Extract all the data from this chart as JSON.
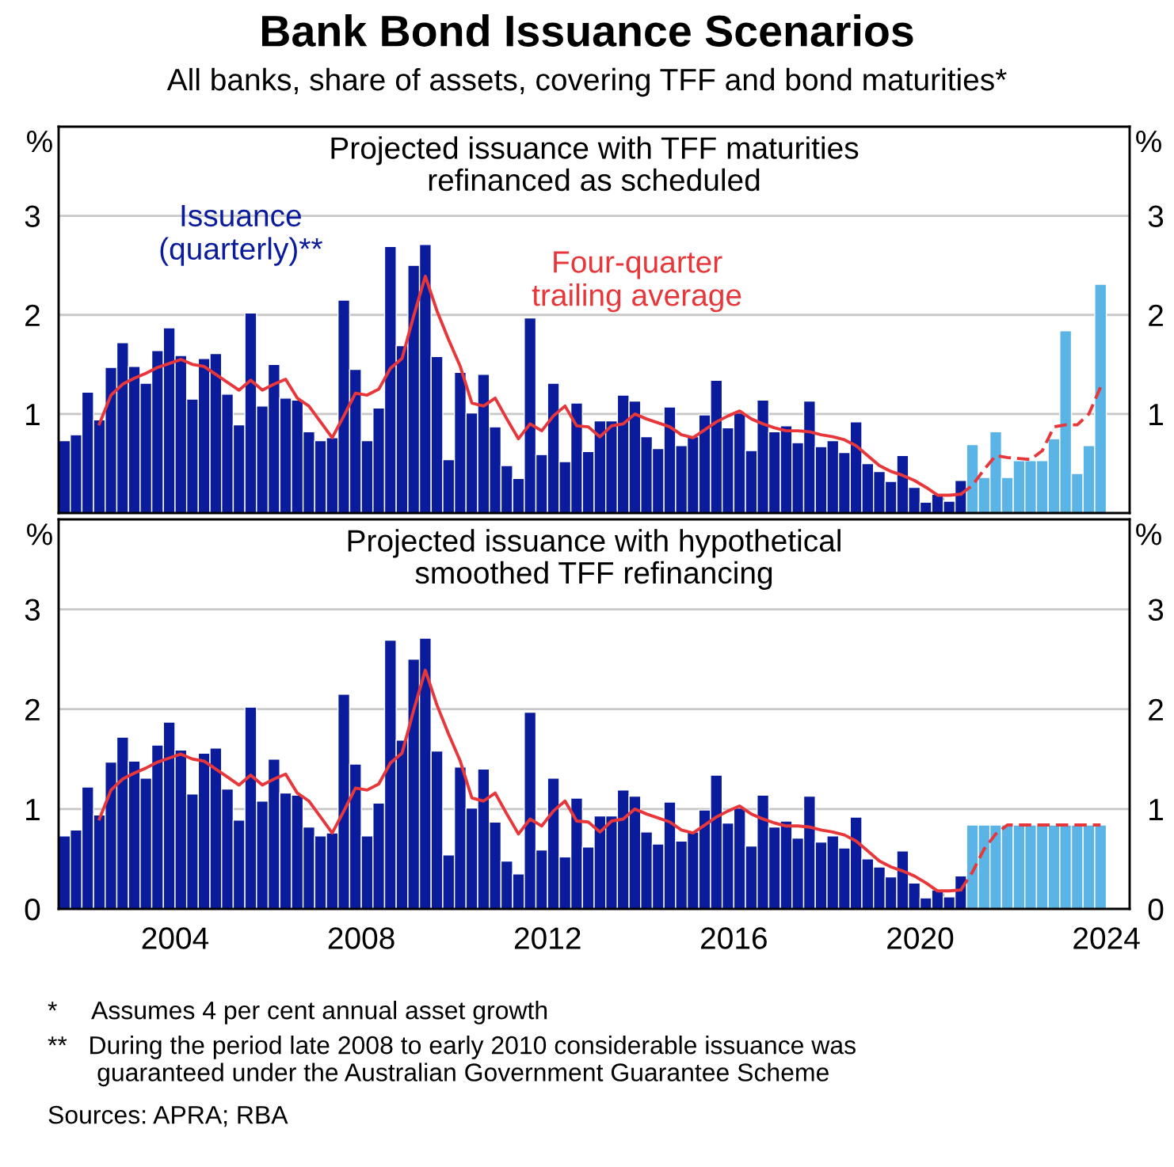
{
  "chart_data": [
    {
      "type": "bar",
      "title": "Bank Bond Issuance Scenarios",
      "subtitle": "All banks, share of assets, covering TFF and bond maturities*",
      "annotations": [
        "Projected issuance with TFF maturities\nrefinanced as scheduled"
      ],
      "x": [
        2002.125,
        2002.375,
        2002.625,
        2002.875,
        2003.125,
        2003.375,
        2003.625,
        2003.875,
        2004.125,
        2004.375,
        2004.625,
        2004.875,
        2005.125,
        2005.375,
        2005.625,
        2005.875,
        2006.125,
        2006.375,
        2006.625,
        2006.875,
        2007.125,
        2007.375,
        2007.625,
        2007.875,
        2008.125,
        2008.375,
        2008.625,
        2008.875,
        2009.125,
        2009.375,
        2009.625,
        2009.875,
        2010.125,
        2010.375,
        2010.625,
        2010.875,
        2011.125,
        2011.375,
        2011.625,
        2011.875,
        2012.125,
        2012.375,
        2012.625,
        2012.875,
        2013.125,
        2013.375,
        2013.625,
        2013.875,
        2014.125,
        2014.375,
        2014.625,
        2014.875,
        2015.125,
        2015.375,
        2015.625,
        2015.875,
        2016.125,
        2016.375,
        2016.625,
        2016.875,
        2017.125,
        2017.375,
        2017.625,
        2017.875,
        2018.125,
        2018.375,
        2018.625,
        2018.875,
        2019.125,
        2019.375,
        2019.625,
        2019.875,
        2020.125,
        2020.375,
        2020.625,
        2020.875,
        2021.125,
        2021.375,
        2021.625,
        2021.875,
        2022.125,
        2022.375,
        2022.625,
        2022.875,
        2023.125,
        2023.375,
        2023.625,
        2023.875,
        2024.125,
        2024.375
      ],
      "xlim": [
        2002,
        2025
      ],
      "xticks": [
        {
          "value": 2003,
          "label": null
        },
        {
          "value": 2004,
          "label": null
        },
        {
          "value": 2005,
          "label": null
        },
        {
          "value": 2006,
          "label": null
        },
        {
          "value": 2007,
          "label": null
        },
        {
          "value": 2008,
          "label": null
        },
        {
          "value": 2009,
          "label": null
        },
        {
          "value": 2010,
          "label": null
        },
        {
          "value": 2011,
          "label": null
        },
        {
          "value": 2012,
          "label": null
        },
        {
          "value": 2013,
          "label": null
        },
        {
          "value": 2014,
          "label": null
        },
        {
          "value": 2015,
          "label": null
        },
        {
          "value": 2016,
          "label": null
        },
        {
          "value": 2017,
          "label": null
        },
        {
          "value": 2018,
          "label": null
        },
        {
          "value": 2019,
          "label": null
        },
        {
          "value": 2020,
          "label": null
        },
        {
          "value": 2021,
          "label": null
        },
        {
          "value": 2022,
          "label": null
        },
        {
          "value": 2023,
          "label": null
        },
        {
          "value": 2024,
          "label": null
        }
      ],
      "ylim": [
        0,
        3.9
      ],
      "yticks": [
        1,
        2,
        3
      ],
      "y2lim": [
        0,
        3.9
      ],
      "y2ticks": [
        1,
        2,
        3
      ],
      "ylabel": "%",
      "y2label": "%",
      "grid": "y",
      "tick_labels": "y",
      "series": [
        {
          "name": "Issuance\n(quarterly)**",
          "color": "#0a1c9c",
          "values": [
            0.73,
            0.79,
            1.22,
            0.94,
            1.47,
            1.72,
            1.48,
            1.31,
            1.64,
            1.87,
            1.59,
            1.15,
            1.56,
            1.61,
            1.2,
            0.89,
            2.02,
            1.08,
            1.5,
            1.16,
            1.14,
            0.82,
            0.73,
            0.76,
            2.15,
            1.45,
            0.73,
            1.06,
            2.69,
            1.69,
            2.5,
            2.71,
            1.58,
            0.54,
            1.42,
            1.01,
            1.4,
            0.87,
            0.48,
            0.35,
            1.97,
            0.59,
            1.31,
            0.52,
            1.11,
            0.62,
            0.93,
            0.93,
            1.19,
            1.13,
            0.77,
            0.65,
            1.07,
            0.68,
            0.77,
            0.99,
            1.34,
            0.86,
            1.01,
            0.63,
            1.14,
            0.82,
            0.88,
            0.71,
            1.13,
            0.67,
            0.73,
            0.61,
            0.92,
            0.5,
            0.42,
            0.32,
            0.58,
            0.26,
            0.11,
            0.19,
            0.12,
            0.33,
            null,
            null,
            null,
            null,
            null,
            null,
            null,
            null,
            null,
            null,
            null,
            null
          ]
        },
        {
          "color": "#5ab4e5",
          "values": [
            null,
            null,
            null,
            null,
            null,
            null,
            null,
            null,
            null,
            null,
            null,
            null,
            null,
            null,
            null,
            null,
            null,
            null,
            null,
            null,
            null,
            null,
            null,
            null,
            null,
            null,
            null,
            null,
            null,
            null,
            null,
            null,
            null,
            null,
            null,
            null,
            null,
            null,
            null,
            null,
            null,
            null,
            null,
            null,
            null,
            null,
            null,
            null,
            null,
            null,
            null,
            null,
            null,
            null,
            null,
            null,
            null,
            null,
            null,
            null,
            null,
            null,
            null,
            null,
            null,
            null,
            null,
            null,
            null,
            null,
            null,
            null,
            null,
            null,
            null,
            null,
            null,
            null,
            0.69,
            0.36,
            0.82,
            0.36,
            0.53,
            0.53,
            0.53,
            0.75,
            1.84,
            0.4,
            0.68,
            2.31
          ]
        },
        {
          "type": "line",
          "name": "Four-quarter\ntrailing average",
          "color": "#e8373a",
          "line_style": "solid",
          "values": [
            null,
            null,
            null,
            0.9,
            1.19,
            1.3,
            1.36,
            1.41,
            1.47,
            1.51,
            1.55,
            1.5,
            1.48,
            1.4,
            1.32,
            1.24,
            1.34,
            1.24,
            1.3,
            1.35,
            1.16,
            1.08,
            0.92,
            0.76,
            0.98,
            1.21,
            1.19,
            1.25,
            1.46,
            1.56,
            1.99,
            2.39,
            2.04,
            1.75,
            1.48,
            1.11,
            1.08,
            1.16,
            0.95,
            0.75,
            0.9,
            0.83,
            0.98,
            1.08,
            0.88,
            0.87,
            0.77,
            0.88,
            0.9,
            1.0,
            0.95,
            0.91,
            0.87,
            0.79,
            0.76,
            0.84,
            0.92,
            0.98,
            1.03,
            0.95,
            0.9,
            0.86,
            0.83,
            0.83,
            0.82,
            0.79,
            0.77,
            0.74,
            0.68,
            0.58,
            0.48,
            0.42,
            0.38,
            0.33,
            0.26,
            0.18,
            0.18,
            0.19,
            null,
            null,
            null,
            null,
            null,
            null,
            null,
            null,
            null,
            null,
            null,
            null
          ]
        },
        {
          "type": "line",
          "color": "#e8373a",
          "line_style": "dashed",
          "values": [
            null,
            null,
            null,
            null,
            null,
            null,
            null,
            null,
            null,
            null,
            null,
            null,
            null,
            null,
            null,
            null,
            null,
            null,
            null,
            null,
            null,
            null,
            null,
            null,
            null,
            null,
            null,
            null,
            null,
            null,
            null,
            null,
            null,
            null,
            null,
            null,
            null,
            null,
            null,
            null,
            null,
            null,
            null,
            null,
            null,
            null,
            null,
            null,
            null,
            null,
            null,
            null,
            null,
            null,
            null,
            null,
            null,
            null,
            null,
            null,
            null,
            null,
            null,
            null,
            null,
            null,
            null,
            null,
            null,
            null,
            null,
            null,
            null,
            null,
            null,
            null,
            null,
            0.19,
            0.28,
            0.44,
            0.58,
            0.56,
            0.55,
            0.54,
            0.63,
            0.87,
            0.89,
            0.89,
            1.0,
            1.27
          ]
        }
      ]
    },
    {
      "type": "bar",
      "annotations": [
        "Projected issuance with hypothetical\nsmoothed TFF refinancing",
        "*     Assumes 4 per cent annual asset growth",
        "**   During the period late 2008 to early 2010 considerable issuance was\n       guaranteed under the Australian Government Guarantee Scheme",
        "Sources: APRA; RBA"
      ],
      "x": [
        2002.125,
        2002.375,
        2002.625,
        2002.875,
        2003.125,
        2003.375,
        2003.625,
        2003.875,
        2004.125,
        2004.375,
        2004.625,
        2004.875,
        2005.125,
        2005.375,
        2005.625,
        2005.875,
        2006.125,
        2006.375,
        2006.625,
        2006.875,
        2007.125,
        2007.375,
        2007.625,
        2007.875,
        2008.125,
        2008.375,
        2008.625,
        2008.875,
        2009.125,
        2009.375,
        2009.625,
        2009.875,
        2010.125,
        2010.375,
        2010.625,
        2010.875,
        2011.125,
        2011.375,
        2011.625,
        2011.875,
        2012.125,
        2012.375,
        2012.625,
        2012.875,
        2013.125,
        2013.375,
        2013.625,
        2013.875,
        2014.125,
        2014.375,
        2014.625,
        2014.875,
        2015.125,
        2015.375,
        2015.625,
        2015.875,
        2016.125,
        2016.375,
        2016.625,
        2016.875,
        2017.125,
        2017.375,
        2017.625,
        2017.875,
        2018.125,
        2018.375,
        2018.625,
        2018.875,
        2019.125,
        2019.375,
        2019.625,
        2019.875,
        2020.125,
        2020.375,
        2020.625,
        2020.875,
        2021.125,
        2021.375,
        2021.625,
        2021.875,
        2022.125,
        2022.375,
        2022.625,
        2022.875,
        2023.125,
        2023.375,
        2023.625,
        2023.875,
        2024.125,
        2024.375
      ],
      "xlim": [
        2002,
        2025
      ],
      "xticks": [
        {
          "value": 2003,
          "label": null
        },
        {
          "value": 2004,
          "label": null
        },
        {
          "value": 2004.5,
          "label": "2004"
        },
        {
          "value": 2005,
          "label": null
        },
        {
          "value": 2006,
          "label": null
        },
        {
          "value": 2007,
          "label": null
        },
        {
          "value": 2008,
          "label": null
        },
        {
          "value": 2008.5,
          "label": "2008"
        },
        {
          "value": 2009,
          "label": null
        },
        {
          "value": 2010,
          "label": null
        },
        {
          "value": 2011,
          "label": null
        },
        {
          "value": 2012,
          "label": null
        },
        {
          "value": 2012.5,
          "label": "2012"
        },
        {
          "value": 2013,
          "label": null
        },
        {
          "value": 2014,
          "label": null
        },
        {
          "value": 2015,
          "label": null
        },
        {
          "value": 2016,
          "label": null
        },
        {
          "value": 2016.5,
          "label": "2016"
        },
        {
          "value": 2017,
          "label": null
        },
        {
          "value": 2018,
          "label": null
        },
        {
          "value": 2019,
          "label": null
        },
        {
          "value": 2020,
          "label": null
        },
        {
          "value": 2020.5,
          "label": "2020"
        },
        {
          "value": 2021,
          "label": null
        },
        {
          "value": 2022,
          "label": null
        },
        {
          "value": 2023,
          "label": null
        },
        {
          "value": 2024,
          "label": null
        },
        {
          "value": 2024.5,
          "label": "2024"
        }
      ],
      "ylim": [
        0,
        3.9
      ],
      "yticks": [
        0,
        1,
        2,
        3
      ],
      "y2lim": [
        0,
        3.9
      ],
      "y2ticks": [
        0,
        1,
        2,
        3
      ],
      "ylabel": "%",
      "y2label": "%",
      "grid": "y",
      "series": [
        {
          "color": "#0a1c9c",
          "values": [
            0.73,
            0.79,
            1.22,
            0.94,
            1.47,
            1.72,
            1.48,
            1.31,
            1.64,
            1.87,
            1.59,
            1.15,
            1.56,
            1.61,
            1.2,
            0.89,
            2.02,
            1.08,
            1.5,
            1.16,
            1.14,
            0.82,
            0.73,
            0.76,
            2.15,
            1.45,
            0.73,
            1.06,
            2.69,
            1.69,
            2.5,
            2.71,
            1.58,
            0.54,
            1.42,
            1.01,
            1.4,
            0.87,
            0.48,
            0.35,
            1.97,
            0.59,
            1.31,
            0.52,
            1.11,
            0.62,
            0.93,
            0.93,
            1.19,
            1.13,
            0.77,
            0.65,
            1.07,
            0.68,
            0.77,
            0.99,
            1.34,
            0.86,
            1.01,
            0.63,
            1.14,
            0.82,
            0.88,
            0.71,
            1.13,
            0.67,
            0.73,
            0.61,
            0.92,
            0.5,
            0.42,
            0.32,
            0.58,
            0.26,
            0.11,
            0.19,
            0.12,
            0.33,
            null,
            null,
            null,
            null,
            null,
            null,
            null,
            null,
            null,
            null,
            null,
            null
          ]
        },
        {
          "color": "#5ab4e5",
          "values": [
            null,
            null,
            null,
            null,
            null,
            null,
            null,
            null,
            null,
            null,
            null,
            null,
            null,
            null,
            null,
            null,
            null,
            null,
            null,
            null,
            null,
            null,
            null,
            null,
            null,
            null,
            null,
            null,
            null,
            null,
            null,
            null,
            null,
            null,
            null,
            null,
            null,
            null,
            null,
            null,
            null,
            null,
            null,
            null,
            null,
            null,
            null,
            null,
            null,
            null,
            null,
            null,
            null,
            null,
            null,
            null,
            null,
            null,
            null,
            null,
            null,
            null,
            null,
            null,
            null,
            null,
            null,
            null,
            null,
            null,
            null,
            null,
            null,
            null,
            null,
            null,
            null,
            null,
            0.84,
            0.84,
            0.84,
            0.84,
            0.84,
            0.84,
            0.84,
            0.84,
            0.84,
            0.84,
            0.84,
            0.84
          ]
        },
        {
          "type": "line",
          "color": "#e8373a",
          "line_style": "solid",
          "values": [
            null,
            null,
            null,
            0.9,
            1.19,
            1.3,
            1.36,
            1.41,
            1.47,
            1.51,
            1.55,
            1.5,
            1.48,
            1.4,
            1.32,
            1.24,
            1.34,
            1.24,
            1.3,
            1.35,
            1.16,
            1.08,
            0.92,
            0.76,
            0.98,
            1.21,
            1.19,
            1.25,
            1.46,
            1.56,
            1.99,
            2.39,
            2.04,
            1.75,
            1.48,
            1.11,
            1.08,
            1.16,
            0.95,
            0.75,
            0.9,
            0.83,
            0.98,
            1.08,
            0.88,
            0.87,
            0.77,
            0.88,
            0.9,
            1.0,
            0.95,
            0.91,
            0.87,
            0.79,
            0.76,
            0.84,
            0.92,
            0.98,
            1.03,
            0.95,
            0.9,
            0.86,
            0.83,
            0.83,
            0.82,
            0.79,
            0.77,
            0.74,
            0.68,
            0.58,
            0.48,
            0.42,
            0.38,
            0.33,
            0.26,
            0.18,
            0.18,
            0.19,
            null,
            null,
            null,
            null,
            null,
            null,
            null,
            null,
            null,
            null,
            null,
            null
          ]
        },
        {
          "type": "line",
          "color": "#e8373a",
          "line_style": "dashed",
          "values": [
            null,
            null,
            null,
            null,
            null,
            null,
            null,
            null,
            null,
            null,
            null,
            null,
            null,
            null,
            null,
            null,
            null,
            null,
            null,
            null,
            null,
            null,
            null,
            null,
            null,
            null,
            null,
            null,
            null,
            null,
            null,
            null,
            null,
            null,
            null,
            null,
            null,
            null,
            null,
            null,
            null,
            null,
            null,
            null,
            null,
            null,
            null,
            null,
            null,
            null,
            null,
            null,
            null,
            null,
            null,
            null,
            null,
            null,
            null,
            null,
            null,
            null,
            null,
            null,
            null,
            null,
            null,
            null,
            null,
            null,
            null,
            null,
            null,
            null,
            null,
            null,
            null,
            0.19,
            0.37,
            0.6,
            0.75,
            0.84,
            0.84,
            0.84,
            0.84,
            0.84,
            0.84,
            0.84,
            0.84,
            0.84
          ]
        }
      ]
    }
  ]
}
